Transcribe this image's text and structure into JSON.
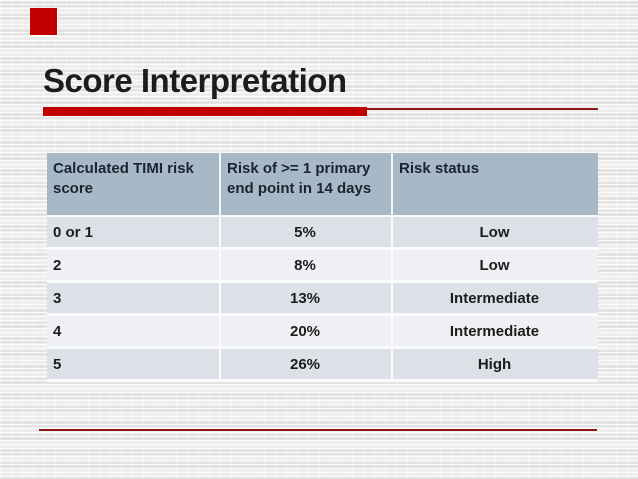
{
  "slide": {
    "title": "Score Interpretation",
    "accent_color": "#c00000",
    "thin_line_color": "#8c1616",
    "corner_decoration": "red-square"
  },
  "table": {
    "header_bg": "#a7b8c6",
    "row_bg_odd": "#dce1e7",
    "row_bg_even": "#eef0f3",
    "headers": [
      "Calculated TIMI risk score",
      "Risk of >= 1 primary end point in 14 days",
      "Risk status"
    ],
    "rows": [
      {
        "score": "0 or 1",
        "risk": "5%",
        "status": "Low"
      },
      {
        "score": "2",
        "risk": "8%",
        "status": "Low"
      },
      {
        "score": "3",
        "risk": "13%",
        "status": "Intermediate"
      },
      {
        "score": "4",
        "risk": "20%",
        "status": "Intermediate"
      },
      {
        "score": "5",
        "risk": "26%",
        "status": "High"
      }
    ]
  }
}
